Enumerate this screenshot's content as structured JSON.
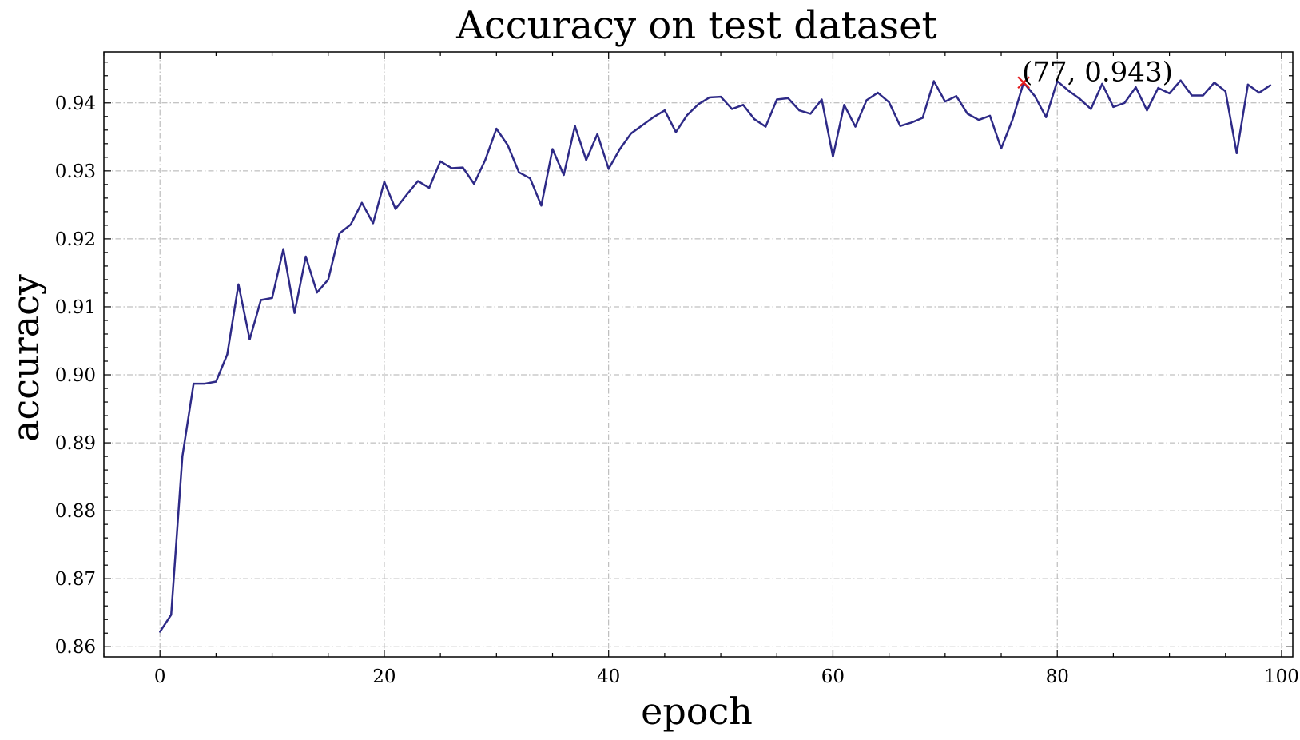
{
  "chart_data": {
    "type": "line",
    "title": "Accuracy on test dataset",
    "xlabel": "epoch",
    "ylabel": "accuracy",
    "xlim": [
      -5,
      101
    ],
    "ylim": [
      0.8585,
      0.9475
    ],
    "xticks": [
      0,
      20,
      40,
      60,
      80,
      100
    ],
    "xtick_labels": [
      "0",
      "20",
      "40",
      "60",
      "80",
      "100"
    ],
    "yticks": [
      0.86,
      0.87,
      0.88,
      0.89,
      0.9,
      0.91,
      0.92,
      0.93,
      0.94
    ],
    "ytick_labels": [
      "0.86",
      "0.87",
      "0.88",
      "0.89",
      "0.90",
      "0.91",
      "0.92",
      "0.93",
      "0.94"
    ],
    "grid": true,
    "line_color": "#2e2a87",
    "marker_color": "#e41a1c",
    "series": [
      {
        "x": [
          0,
          1,
          2,
          3,
          4,
          5,
          6,
          7,
          8,
          9,
          10,
          11,
          12,
          13,
          14,
          15,
          16,
          17,
          18,
          19,
          20,
          21,
          22,
          23,
          24,
          25,
          26,
          27,
          28,
          29,
          30,
          31,
          32,
          33,
          34,
          35,
          36,
          37,
          38,
          39,
          40,
          41,
          42,
          43,
          44,
          45,
          46,
          47,
          48,
          49,
          50,
          51,
          52,
          53,
          54,
          55,
          56,
          57,
          58,
          59,
          60,
          61,
          62,
          63,
          64,
          65,
          66,
          67,
          68,
          69,
          70,
          71,
          72,
          73,
          74,
          75,
          76,
          77,
          78,
          79,
          80,
          81,
          82,
          83,
          84,
          85,
          86,
          87,
          88,
          89,
          90,
          91,
          92,
          93,
          94,
          95,
          96,
          97,
          98,
          99
        ],
        "values": [
          0.8622,
          0.8647,
          0.888,
          0.8987,
          0.8987,
          0.899,
          0.903,
          0.9133,
          0.9052,
          0.911,
          0.9113,
          0.9185,
          0.9091,
          0.9174,
          0.9121,
          0.914,
          0.9208,
          0.9221,
          0.9253,
          0.9223,
          0.9284,
          0.9244,
          0.9265,
          0.9285,
          0.9275,
          0.9314,
          0.9304,
          0.9305,
          0.9281,
          0.9316,
          0.9362,
          0.9338,
          0.9298,
          0.9289,
          0.9249,
          0.9332,
          0.9294,
          0.9366,
          0.9316,
          0.9354,
          0.9303,
          0.9332,
          0.9355,
          0.9367,
          0.9379,
          0.9389,
          0.9357,
          0.9382,
          0.9398,
          0.9408,
          0.9409,
          0.9391,
          0.9397,
          0.9376,
          0.9365,
          0.9405,
          0.9407,
          0.9389,
          0.9384,
          0.9405,
          0.9321,
          0.9397,
          0.9365,
          0.9404,
          0.9415,
          0.9401,
          0.9366,
          0.9371,
          0.9378,
          0.9432,
          0.9402,
          0.941,
          0.9384,
          0.9375,
          0.9381,
          0.9333,
          0.9375,
          0.943,
          0.941,
          0.9379,
          0.9432,
          0.9418,
          0.9406,
          0.9391,
          0.9428,
          0.9394,
          0.94,
          0.9423,
          0.9389,
          0.9422,
          0.9414,
          0.9433,
          0.9411,
          0.9411,
          0.943,
          0.9417,
          0.9326,
          0.9427,
          0.9415,
          0.9426
        ]
      }
    ],
    "annotation": {
      "x": 77,
      "y": 0.943,
      "text": "(77, 0.943)"
    }
  }
}
